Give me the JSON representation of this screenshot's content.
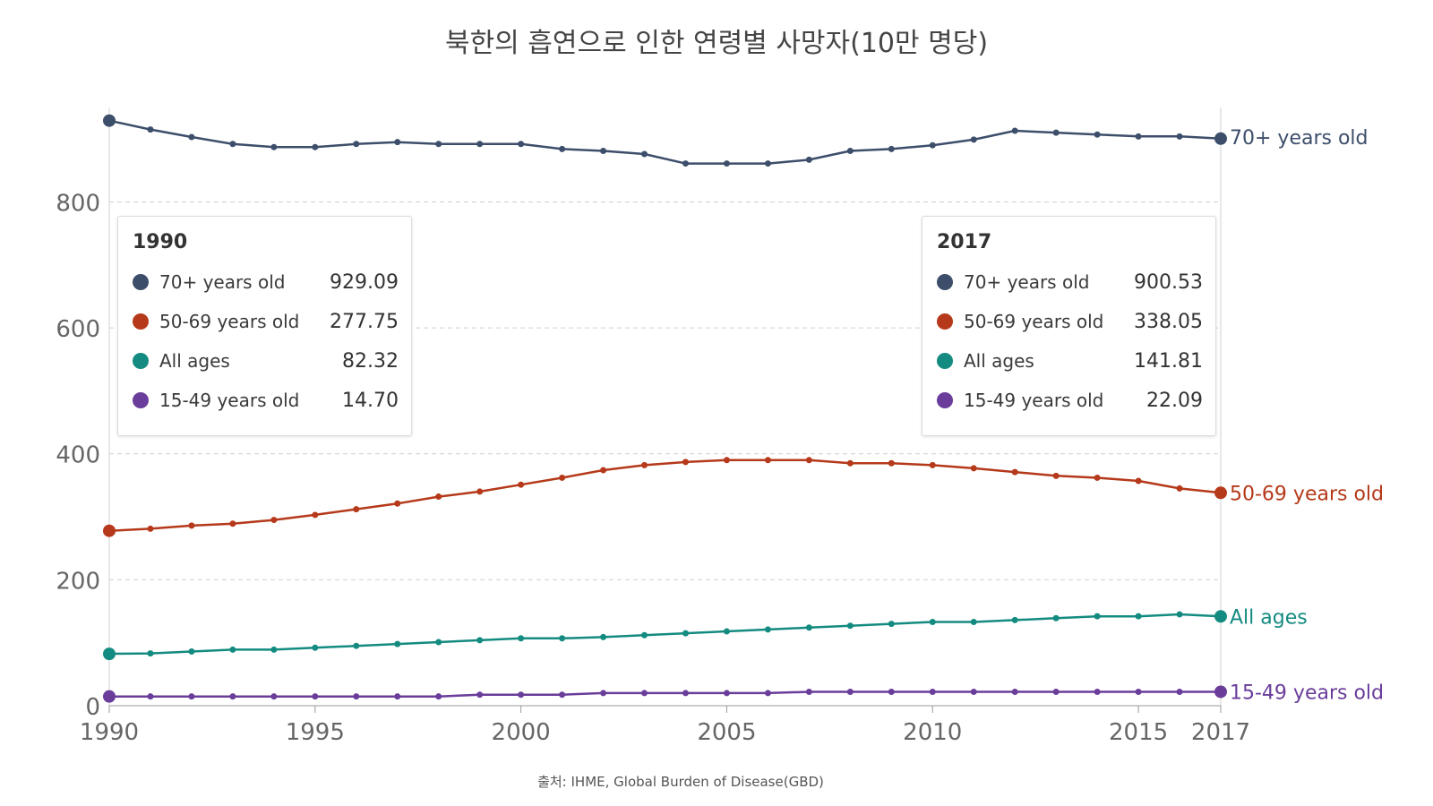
{
  "title": "북한의 흡연으로 인한 연령별 사망자(10만 명당)",
  "source": "출처: IHME, Global Burden of Disease(GBD)",
  "chart_data": {
    "type": "line",
    "title": "북한의 흡연으로 인한 연령별 사망자(10만 명당)",
    "xlabel": "",
    "ylabel": "",
    "x": [
      1990,
      1991,
      1992,
      1993,
      1994,
      1995,
      1996,
      1997,
      1998,
      1999,
      2000,
      2001,
      2002,
      2003,
      2004,
      2005,
      2006,
      2007,
      2008,
      2009,
      2010,
      2011,
      2012,
      2013,
      2014,
      2015,
      2016,
      2017
    ],
    "xlim": [
      1990,
      2017
    ],
    "ylim": [
      0,
      950
    ],
    "x_ticks": [
      "1990",
      "1995",
      "2000",
      "2005",
      "2010",
      "2015",
      "2017"
    ],
    "x_tick_values": [
      1990,
      1995,
      2000,
      2005,
      2010,
      2015,
      2017
    ],
    "y_ticks": [
      "0",
      "200",
      "400",
      "600",
      "800"
    ],
    "y_tick_values": [
      0,
      200,
      400,
      600,
      800
    ],
    "grid": true,
    "series": [
      {
        "name": "70+ years old",
        "color": "#3d4e6b",
        "values": [
          929.09,
          915,
          903,
          892,
          887,
          887,
          892,
          895,
          892,
          892,
          892,
          884,
          881,
          876,
          861,
          861,
          861,
          867,
          881,
          884,
          890,
          899,
          913,
          910,
          907,
          904,
          904,
          900.53
        ]
      },
      {
        "name": "50-69 years old",
        "color": "#b5391a",
        "values": [
          277.75,
          281,
          286,
          289,
          295,
          303,
          312,
          321,
          332,
          340,
          351,
          362,
          374,
          382,
          387,
          390,
          390,
          390,
          385,
          385,
          382,
          377,
          371,
          365,
          362,
          357,
          345,
          338.05
        ]
      },
      {
        "name": "All ages",
        "color": "#148b80",
        "values": [
          82.32,
          83,
          86,
          89,
          89,
          92,
          95,
          98,
          101,
          104,
          107,
          107,
          109,
          112,
          115,
          118,
          121,
          124,
          127,
          130,
          133,
          133,
          136,
          139,
          142,
          142,
          145,
          141.81
        ]
      },
      {
        "name": "15-49 years old",
        "color": "#6a3d9a",
        "values": [
          14.7,
          14.7,
          14.7,
          14.7,
          14.7,
          14.7,
          14.7,
          14.7,
          14.7,
          17.5,
          17.5,
          17.5,
          20,
          20,
          20,
          20,
          20,
          22,
          22,
          22,
          22,
          22,
          22,
          22,
          22,
          22,
          22,
          22.09
        ]
      }
    ]
  },
  "tooltips": [
    {
      "year": "1990",
      "rows": [
        {
          "label": "70+ years old",
          "value": "929.09",
          "color": "#3d4e6b"
        },
        {
          "label": "50-69 years old",
          "value": "277.75",
          "color": "#b5391a"
        },
        {
          "label": "All ages",
          "value": "82.32",
          "color": "#148b80"
        },
        {
          "label": "15-49 years old",
          "value": "14.70",
          "color": "#6a3d9a"
        }
      ]
    },
    {
      "year": "2017",
      "rows": [
        {
          "label": "70+ years old",
          "value": "900.53",
          "color": "#3d4e6b"
        },
        {
          "label": "50-69 years old",
          "value": "338.05",
          "color": "#b5391a"
        },
        {
          "label": "All ages",
          "value": "141.81",
          "color": "#148b80"
        },
        {
          "label": "15-49 years old",
          "value": "22.09",
          "color": "#6a3d9a"
        }
      ]
    }
  ]
}
